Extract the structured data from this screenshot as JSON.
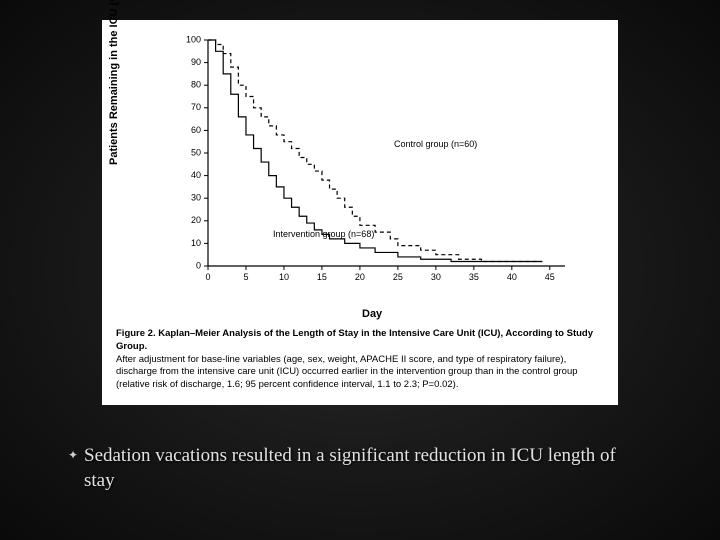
{
  "slide": {
    "bullet": "Sedation vacations resulted in a significant reduction in ICU length of stay"
  },
  "figure": {
    "type": "line",
    "title": "Figure 2. Kaplan–Meier Analysis of the Length of Stay in the Intensive Care Unit (ICU), According to Study Group.",
    "caption_body": "After adjustment for base-line variables (age, sex, weight, APACHE II score, and type of respiratory failure), discharge from the intensive care unit (ICU) occurred earlier in the intervention group than in the control group (relative risk of discharge, 1.6; 95 percent confidence interval, 1.1 to 2.3; P=0.02).",
    "ylabel": "Patients Remaining in the ICU (%)",
    "xlabel": "Day",
    "xlim": [
      0,
      47
    ],
    "ylim": [
      0,
      100
    ],
    "xtick_step": 5,
    "ytick_step": 10,
    "background_color": "#ffffff",
    "axis_color": "#000000",
    "label_fontsize": 11,
    "tick_fontsize": 9,
    "caption_fontsize": 9.5,
    "series": {
      "control": {
        "label": "Control group (n=60)",
        "dash": "4,3",
        "color": "#000000",
        "width": 1.2,
        "points": [
          [
            0,
            100
          ],
          [
            1,
            100
          ],
          [
            1,
            98
          ],
          [
            2,
            98
          ],
          [
            2,
            94
          ],
          [
            3,
            94
          ],
          [
            3,
            88
          ],
          [
            4,
            88
          ],
          [
            4,
            80
          ],
          [
            5,
            80
          ],
          [
            5,
            75
          ],
          [
            6,
            75
          ],
          [
            6,
            70
          ],
          [
            7,
            70
          ],
          [
            7,
            66
          ],
          [
            8,
            66
          ],
          [
            8,
            62
          ],
          [
            9,
            62
          ],
          [
            9,
            58
          ],
          [
            10,
            58
          ],
          [
            10,
            55
          ],
          [
            11,
            55
          ],
          [
            11,
            52
          ],
          [
            12,
            52
          ],
          [
            12,
            48
          ],
          [
            13,
            48
          ],
          [
            13,
            45
          ],
          [
            14,
            45
          ],
          [
            14,
            42
          ],
          [
            15,
            42
          ],
          [
            15,
            38
          ],
          [
            16,
            38
          ],
          [
            16,
            34
          ],
          [
            17,
            34
          ],
          [
            17,
            30
          ],
          [
            18,
            30
          ],
          [
            18,
            26
          ],
          [
            19,
            26
          ],
          [
            19,
            22
          ],
          [
            20,
            22
          ],
          [
            20,
            18
          ],
          [
            22,
            18
          ],
          [
            22,
            15
          ],
          [
            24,
            15
          ],
          [
            24,
            12
          ],
          [
            25,
            12
          ],
          [
            25,
            9
          ],
          [
            28,
            9
          ],
          [
            28,
            7
          ],
          [
            30,
            7
          ],
          [
            30,
            5
          ],
          [
            33,
            5
          ],
          [
            33,
            3
          ],
          [
            36,
            3
          ],
          [
            36,
            2
          ],
          [
            44,
            2
          ]
        ]
      },
      "intervention": {
        "label": "Intervention group (n=68)",
        "dash": "none",
        "color": "#000000",
        "width": 1.2,
        "points": [
          [
            0,
            100
          ],
          [
            1,
            100
          ],
          [
            1,
            95
          ],
          [
            2,
            95
          ],
          [
            2,
            85
          ],
          [
            3,
            85
          ],
          [
            3,
            76
          ],
          [
            4,
            76
          ],
          [
            4,
            66
          ],
          [
            5,
            66
          ],
          [
            5,
            58
          ],
          [
            6,
            58
          ],
          [
            6,
            52
          ],
          [
            7,
            52
          ],
          [
            7,
            46
          ],
          [
            8,
            46
          ],
          [
            8,
            40
          ],
          [
            9,
            40
          ],
          [
            9,
            35
          ],
          [
            10,
            35
          ],
          [
            10,
            30
          ],
          [
            11,
            30
          ],
          [
            11,
            26
          ],
          [
            12,
            26
          ],
          [
            12,
            22
          ],
          [
            13,
            22
          ],
          [
            13,
            19
          ],
          [
            14,
            19
          ],
          [
            14,
            16
          ],
          [
            15,
            16
          ],
          [
            15,
            14
          ],
          [
            16,
            14
          ],
          [
            16,
            12
          ],
          [
            18,
            12
          ],
          [
            18,
            10
          ],
          [
            20,
            10
          ],
          [
            20,
            8
          ],
          [
            22,
            8
          ],
          [
            22,
            6
          ],
          [
            25,
            6
          ],
          [
            25,
            4
          ],
          [
            28,
            4
          ],
          [
            28,
            3
          ],
          [
            32,
            3
          ],
          [
            32,
            2
          ],
          [
            44,
            2
          ]
        ]
      }
    }
  }
}
